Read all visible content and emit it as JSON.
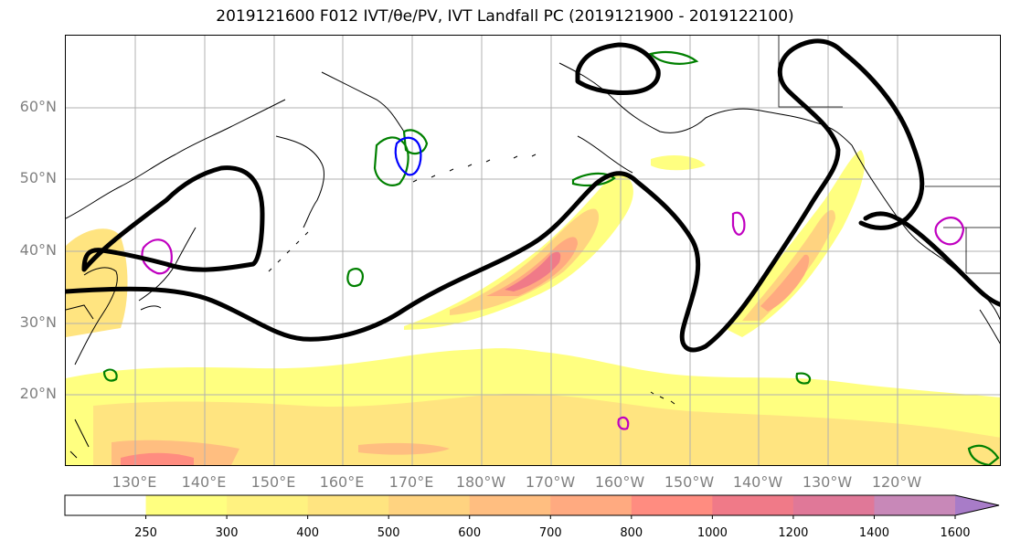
{
  "title": "2019121600 F012 IVT/θe/PV, IVT Landfall PC (2019121900 - 2019122100)",
  "map": {
    "projection": "equirectangular",
    "lon_range": [
      120,
      255
    ],
    "lat_range": [
      10,
      70
    ],
    "lat_ticks": [
      {
        "value": 20,
        "label": "20°N"
      },
      {
        "value": 30,
        "label": "30°N"
      },
      {
        "value": 40,
        "label": "40°N"
      },
      {
        "value": 50,
        "label": "50°N"
      },
      {
        "value": 60,
        "label": "60°N"
      }
    ],
    "lon_ticks": [
      {
        "value": 130,
        "label": "130°E"
      },
      {
        "value": 140,
        "label": "140°E"
      },
      {
        "value": 150,
        "label": "150°E"
      },
      {
        "value": 160,
        "label": "160°E"
      },
      {
        "value": 170,
        "label": "170°E"
      },
      {
        "value": 180,
        "label": "180°W"
      },
      {
        "value": 190,
        "label": "170°W"
      },
      {
        "value": 200,
        "label": "160°W"
      },
      {
        "value": 210,
        "label": "150°W"
      },
      {
        "value": 220,
        "label": "140°W"
      },
      {
        "value": 230,
        "label": "130°W"
      },
      {
        "value": 240,
        "label": "120°W"
      }
    ],
    "grid": true
  },
  "colorbar": {
    "levels": [
      250,
      300,
      400,
      500,
      600,
      700,
      800,
      1000,
      1200,
      1400,
      1600
    ],
    "colors": [
      "#ffff80",
      "#fff280",
      "#ffe480",
      "#ffd380",
      "#ffbe80",
      "#ffaa80",
      "#ff8c80",
      "#f07a88",
      "#e07898",
      "#c888b8",
      "#a87cc8"
    ],
    "extend": "max"
  },
  "colors": {
    "landfall_contour": "#000000",
    "theta_e_contour": "#008000",
    "pv_blue_contour": "#0000ff",
    "pv_magenta_contour": "#c000c0",
    "coastline": "#000000",
    "grid": "#b0b0b0"
  }
}
